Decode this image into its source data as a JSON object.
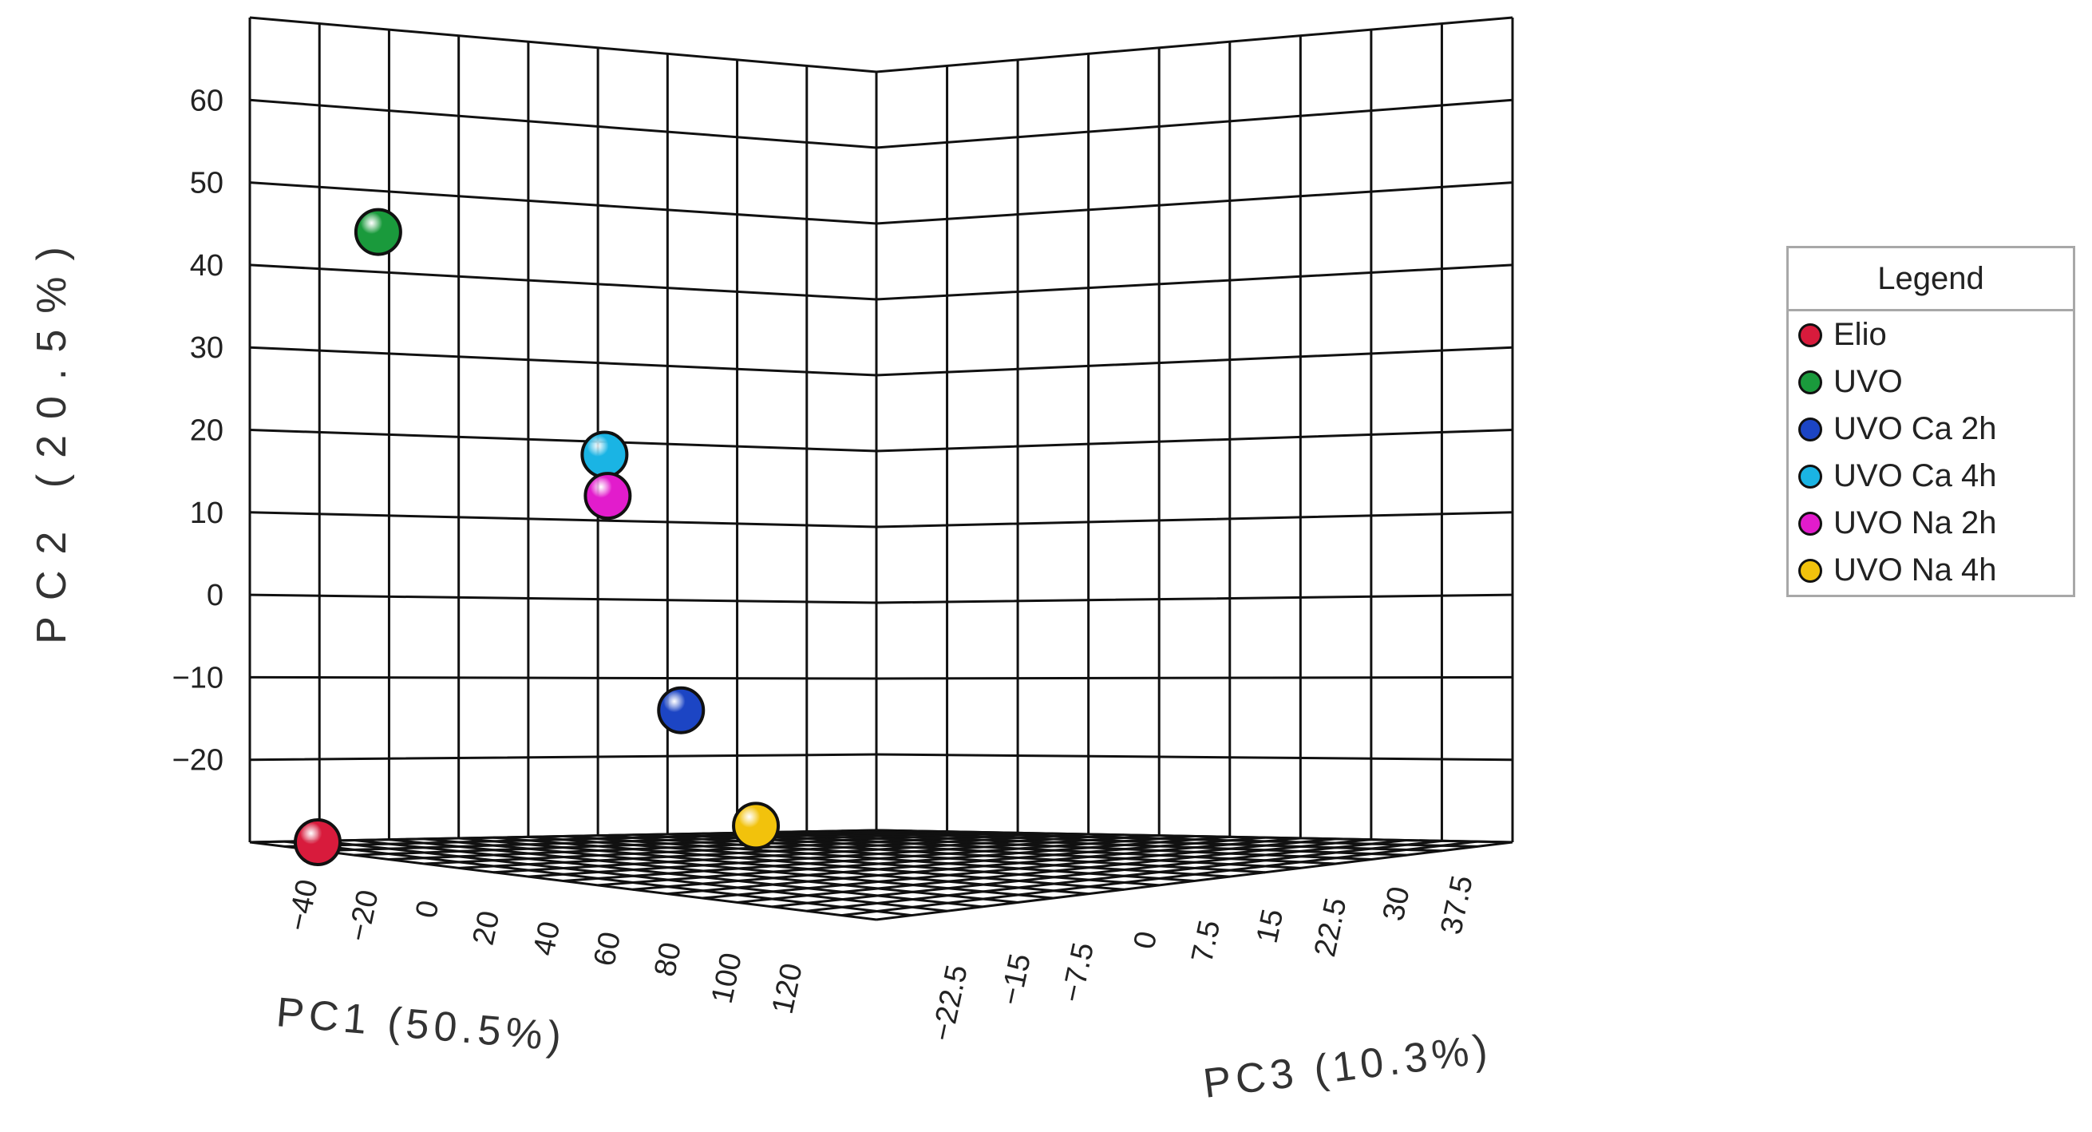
{
  "chart_data": {
    "type": "scatter",
    "projection": "3d",
    "grid": true,
    "legend_position": "right",
    "xlabel": "PC1 (50.5%)",
    "ylabel": "PC2 (20.5%)",
    "zlabel": "PC3 (10.3%)",
    "x_ticks": [
      "−40",
      "−20",
      "0",
      "20",
      "40",
      "60",
      "80",
      "100",
      "120"
    ],
    "y_ticks": [
      "60",
      "50",
      "40",
      "30",
      "20",
      "10",
      "0",
      "−10",
      "−20"
    ],
    "z_ticks": [
      "−22.5",
      "−15",
      "−7.5",
      "0",
      "7.5",
      "15",
      "22.5",
      "30",
      "37.5"
    ],
    "legend_title": "Legend",
    "series": [
      {
        "name": "Elio",
        "color": "#d81b3c",
        "x": -40,
        "y": -30,
        "z": 0
      },
      {
        "name": "UVO",
        "color": "#1a9a3c",
        "x": -20,
        "y": 44,
        "z": 0
      },
      {
        "name": "UVO Ca 2h",
        "color": "#1c45c4",
        "x": 80,
        "y": -14,
        "z": 0
      },
      {
        "name": "UVO Ca 4h",
        "color": "#1ab4e4",
        "x": 60,
        "y": 17,
        "z": -10
      },
      {
        "name": "UVO Na 2h",
        "color": "#e21ccc",
        "x": 60,
        "y": 12,
        "z": -8
      },
      {
        "name": "UVO Na 4h",
        "color": "#f2c20c",
        "x": 110,
        "y": -28,
        "z": -10
      }
    ]
  }
}
